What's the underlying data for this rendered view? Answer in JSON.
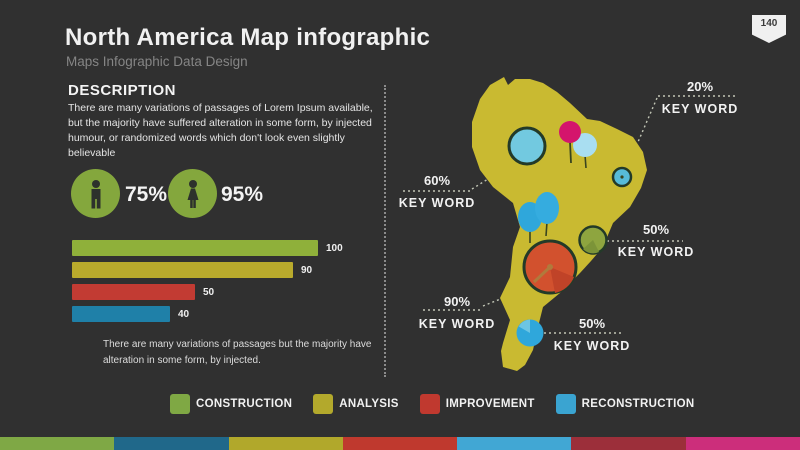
{
  "slide": {
    "title": "North America Map infographic",
    "subtitle": "Maps Infographic Data Design",
    "page_number": "140",
    "background_color": "#303030"
  },
  "description": {
    "heading": "DESCRIPTION",
    "body": "There are many variations of passages of Lorem Ipsum available, but the majority have suffered alteration in some form, by injected humour, or randomized words which don't look even slightly believable",
    "footnote": "There are many variations of passages but the majority have alteration in some form, by injected."
  },
  "stats": {
    "male": {
      "icon": "male-icon",
      "value": "75%",
      "circle_color": "#84a73d"
    },
    "female": {
      "icon": "female-icon",
      "value": "95%",
      "circle_color": "#84a73d"
    }
  },
  "chart_data": {
    "type": "bar",
    "orientation": "horizontal",
    "categories": [
      "CONSTRUCTION",
      "ANALYSIS",
      "IMPROVEMENT",
      "RECONSTRUCTION"
    ],
    "values": [
      100,
      90,
      50,
      40
    ],
    "value_labels": [
      "100",
      "90",
      "50",
      "40"
    ],
    "colors": [
      "#8fb03a",
      "#b9aa2c",
      "#c23b33",
      "#1f80a8"
    ],
    "xlim": [
      0,
      100
    ],
    "title": "",
    "xlabel": "",
    "ylabel": ""
  },
  "map": {
    "region": "south-america",
    "fill_color": "#c9ba31",
    "callouts": [
      {
        "pct": "20%",
        "label": "KEY WORD"
      },
      {
        "pct": "60%",
        "label": "KEY WORD"
      },
      {
        "pct": "50%",
        "label": "KEY WORD"
      },
      {
        "pct": "90%",
        "label": "KEY WORD"
      },
      {
        "pct": "50%",
        "label": "KEY WORD"
      }
    ],
    "markers": [
      {
        "name": "large-blue-circle",
        "color": "#72c9e0"
      },
      {
        "name": "lightblue-balloon",
        "color": "#a9def1"
      },
      {
        "name": "pink-pin",
        "color": "#d4156c"
      },
      {
        "name": "small-teal-circle",
        "color": "#57bbd9"
      },
      {
        "name": "blue-balloon-left",
        "color": "#2fa7db"
      },
      {
        "name": "blue-balloon-right",
        "color": "#35acdf"
      },
      {
        "name": "green-circle",
        "color": "#8ea53f"
      },
      {
        "name": "red-circle",
        "color": "#d2512e"
      },
      {
        "name": "bottom-blue-circle",
        "color": "#2fa7db"
      }
    ]
  },
  "legend": [
    {
      "label": "CONSTRUCTION",
      "color": "#7fa844"
    },
    {
      "label": "ANALYSIS",
      "color": "#b3a92c"
    },
    {
      "label": "IMPROVEMENT",
      "color": "#c0392f"
    },
    {
      "label": "RECONSTRUCTION",
      "color": "#3aa4d1"
    }
  ],
  "footer_strip_colors": [
    "#7fa845",
    "#20688a",
    "#b1a82b",
    "#bf392e",
    "#41a7d4",
    "#9c2f3a",
    "#cc2e7b"
  ]
}
